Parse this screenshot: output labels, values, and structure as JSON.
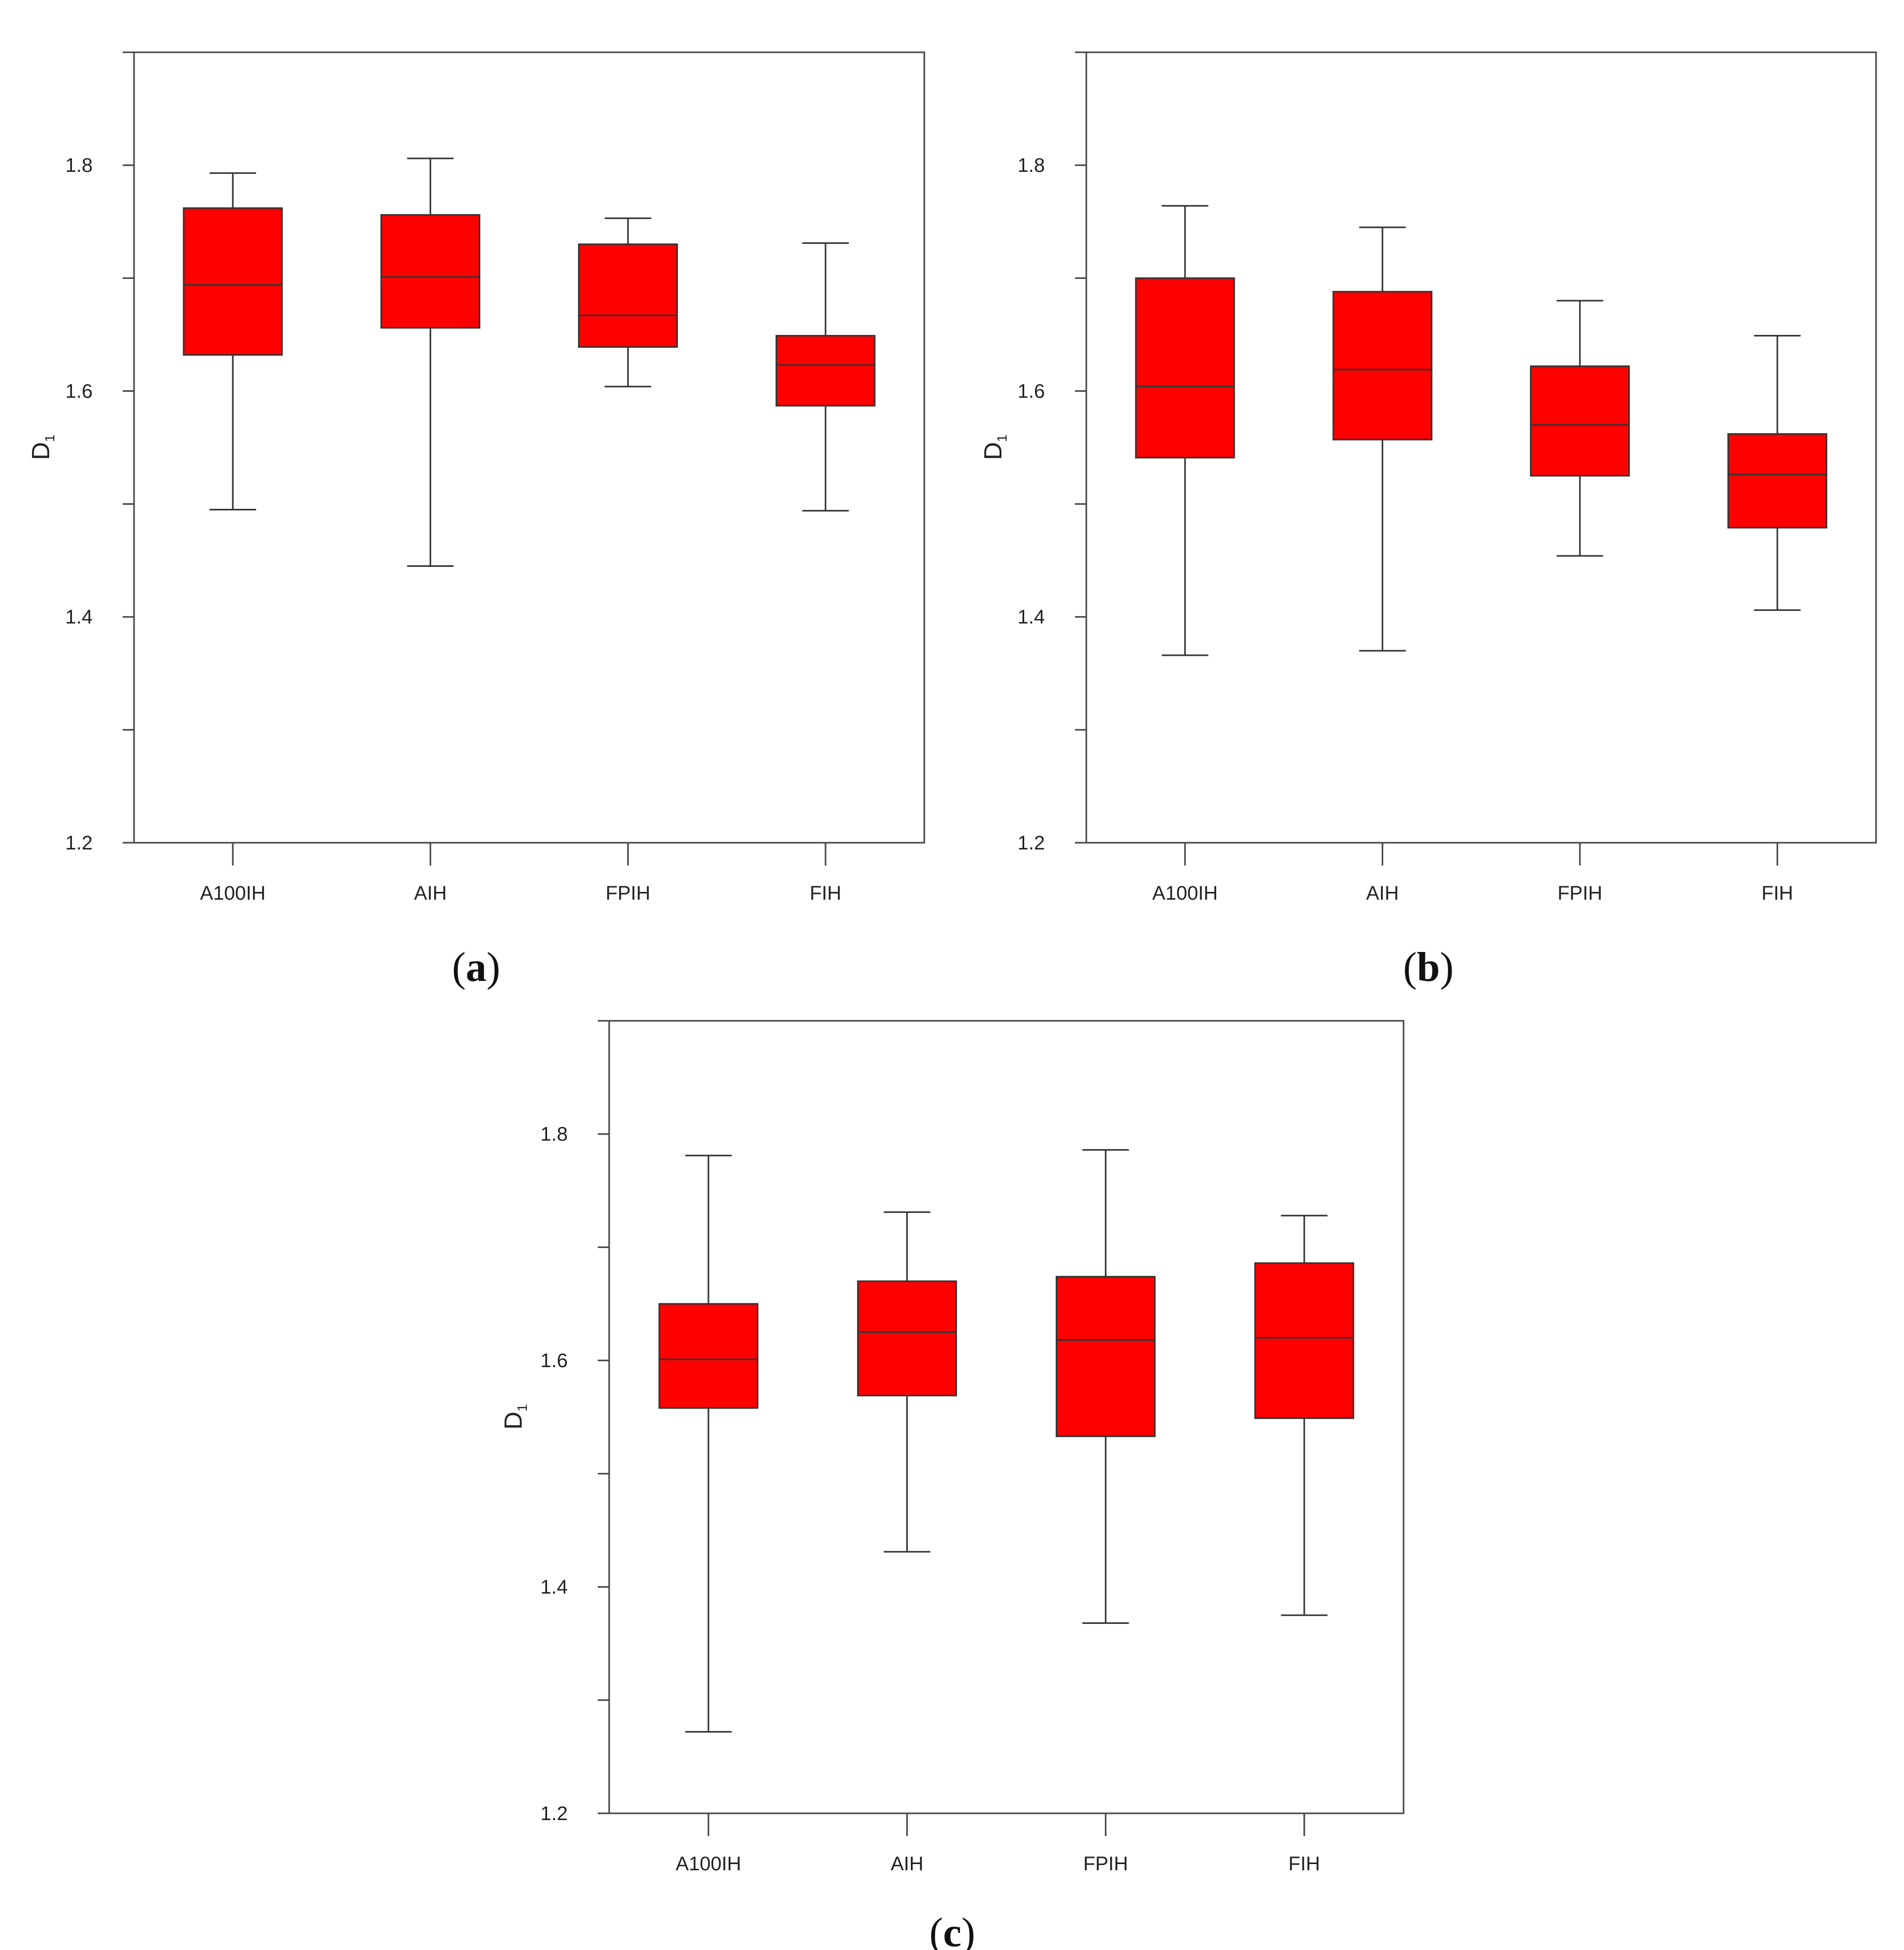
{
  "colors": {
    "box_fill": "#ff0000",
    "box_stroke": "#333333",
    "axis": "#444444"
  },
  "chart_data": [
    {
      "type": "box",
      "panel": "a",
      "caption_label": "a",
      "ylabel_main": "D",
      "ylabel_sub": "1",
      "ylim": [
        1.2,
        1.9
      ],
      "yticks_labeled": [
        "1.2",
        "1.4",
        "1.6",
        "1.8"
      ],
      "categories": [
        "A100IH",
        "AIH",
        "FPIH",
        "FIH"
      ],
      "boxes": [
        {
          "min": 1.495,
          "q1": 1.632,
          "median": 1.694,
          "q3": 1.762,
          "max": 1.793
        },
        {
          "min": 1.445,
          "q1": 1.656,
          "median": 1.701,
          "q3": 1.756,
          "max": 1.806
        },
        {
          "min": 1.604,
          "q1": 1.639,
          "median": 1.667,
          "q3": 1.73,
          "max": 1.753
        },
        {
          "min": 1.494,
          "q1": 1.587,
          "median": 1.623,
          "q3": 1.649,
          "max": 1.731
        }
      ]
    },
    {
      "type": "box",
      "panel": "b",
      "caption_label": "b",
      "ylabel_main": "D",
      "ylabel_sub": "1",
      "ylim": [
        1.2,
        1.9
      ],
      "yticks_labeled": [
        "1.2",
        "1.4",
        "1.6",
        "1.8"
      ],
      "categories": [
        "A100IH",
        "AIH",
        "FPIH",
        "FIH"
      ],
      "boxes": [
        {
          "min": 1.366,
          "q1": 1.541,
          "median": 1.604,
          "q3": 1.7,
          "max": 1.764
        },
        {
          "min": 1.37,
          "q1": 1.557,
          "median": 1.619,
          "q3": 1.688,
          "max": 1.745
        },
        {
          "min": 1.454,
          "q1": 1.525,
          "median": 1.57,
          "q3": 1.622,
          "max": 1.68
        },
        {
          "min": 1.406,
          "q1": 1.479,
          "median": 1.526,
          "q3": 1.562,
          "max": 1.649
        }
      ]
    },
    {
      "type": "box",
      "panel": "c",
      "caption_label": "c",
      "ylabel_main": "D",
      "ylabel_sub": "1",
      "ylim": [
        1.2,
        1.9
      ],
      "yticks_labeled": [
        "1.2",
        "1.4",
        "1.6",
        "1.8"
      ],
      "categories": [
        "A100IH",
        "AIH",
        "FPIH",
        "FIH"
      ],
      "boxes": [
        {
          "min": 1.272,
          "q1": 1.558,
          "median": 1.601,
          "q3": 1.65,
          "max": 1.781
        },
        {
          "min": 1.431,
          "q1": 1.569,
          "median": 1.625,
          "q3": 1.67,
          "max": 1.731
        },
        {
          "min": 1.368,
          "q1": 1.533,
          "median": 1.618,
          "q3": 1.674,
          "max": 1.786
        },
        {
          "min": 1.375,
          "q1": 1.549,
          "median": 1.62,
          "q3": 1.686,
          "max": 1.728
        }
      ]
    }
  ]
}
